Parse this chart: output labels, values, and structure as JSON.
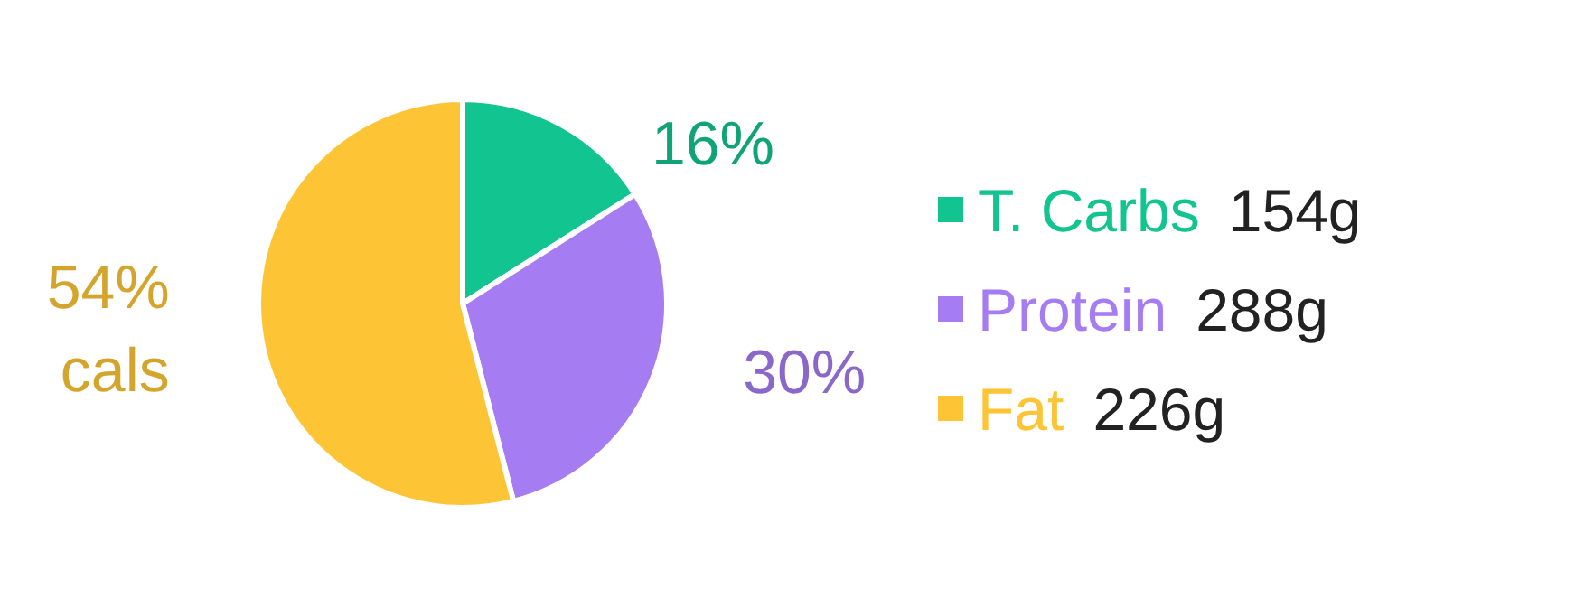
{
  "chart_data": {
    "type": "pie",
    "categories": [
      "T. Carbs",
      "Protein",
      "Fat"
    ],
    "values": [
      16,
      30,
      54
    ],
    "colors": [
      "#12c48f",
      "#a57cf2",
      "#fdc535"
    ],
    "value_labels": [
      "16%",
      "30%",
      "54%\ncals"
    ],
    "legend": "right",
    "annotations": [
      "154g",
      "288g",
      "226g"
    ]
  }
}
